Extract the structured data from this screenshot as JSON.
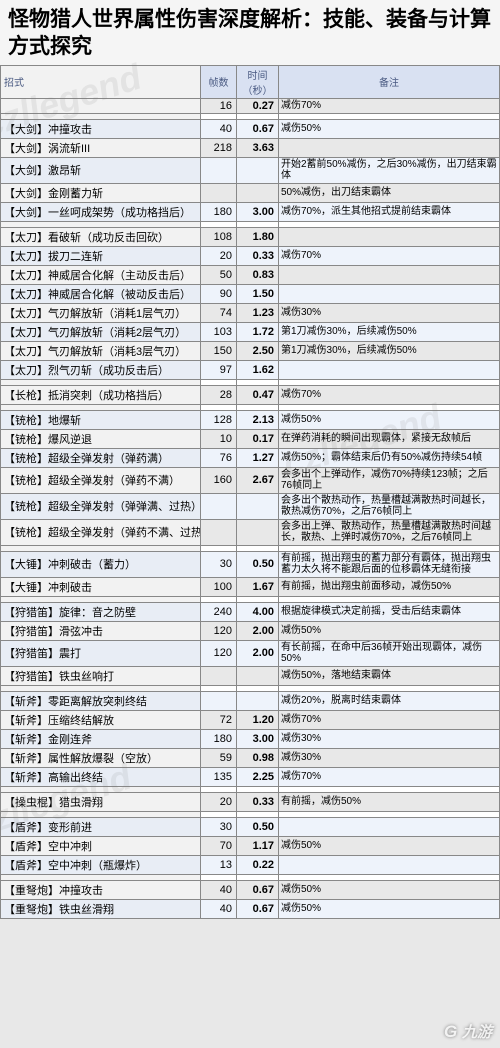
{
  "title": "怪物猎人世界属性伤害深度解析：技能、装备与计算方式探究",
  "watermark": "czllegend",
  "logo": "九游",
  "headers": {
    "name": "招式",
    "frames": "帧数",
    "seconds": "时间（秒）",
    "notes": "备注"
  },
  "groups": [
    {
      "rows": [
        {
          "n": "",
          "f": "16",
          "s": "0.27",
          "t": "减伤70%"
        }
      ]
    },
    {
      "rows": [
        {
          "n": "【大剑】冲撞攻击",
          "f": "40",
          "s": "0.67",
          "t": "减伤50%"
        },
        {
          "n": "【大剑】涡流斩III",
          "f": "218",
          "s": "3.63",
          "t": ""
        },
        {
          "n": "【大剑】激昂斩",
          "f": "",
          "s": "",
          "t": "开始2蓄前50%减伤，之后30%减伤，出刀结束霸体"
        },
        {
          "n": "【大剑】金刚蓄力斩",
          "f": "",
          "s": "",
          "t": "50%减伤，出刀结束霸体"
        },
        {
          "n": "【大剑】一丝呵成架势（成功格挡后）",
          "f": "180",
          "s": "3.00",
          "t": "减伤70%，派生其他招式提前结束霸体"
        }
      ]
    },
    {
      "rows": [
        {
          "n": "【太刀】看破斩（成功反击回砍）",
          "f": "108",
          "s": "1.80",
          "t": ""
        },
        {
          "n": "【太刀】拔刀二连斩",
          "f": "20",
          "s": "0.33",
          "t": "减伤70%"
        },
        {
          "n": "【太刀】神威居合化解（主动反击后）",
          "f": "50",
          "s": "0.83",
          "t": ""
        },
        {
          "n": "【太刀】神威居合化解（被动反击后）",
          "f": "90",
          "s": "1.50",
          "t": ""
        },
        {
          "n": "【太刀】气刃解放斩（消耗1层气刃）",
          "f": "74",
          "s": "1.23",
          "t": "减伤30%"
        },
        {
          "n": "【太刀】气刃解放斩（消耗2层气刃）",
          "f": "103",
          "s": "1.72",
          "t": "第1刀减伤30%，后续减伤50%"
        },
        {
          "n": "【太刀】气刃解放斩（消耗3层气刃）",
          "f": "150",
          "s": "2.50",
          "t": "第1刀减伤30%，后续减伤50%"
        },
        {
          "n": "【太刀】烈气刃斩（成功反击后）",
          "f": "97",
          "s": "1.62",
          "t": ""
        }
      ]
    },
    {
      "rows": [
        {
          "n": "【长枪】抵消突刺（成功格挡后）",
          "f": "28",
          "s": "0.47",
          "t": "减伤70%"
        }
      ]
    },
    {
      "rows": [
        {
          "n": "【铳枪】地爆斩",
          "f": "128",
          "s": "2.13",
          "t": "减伤50%"
        },
        {
          "n": "【铳枪】爆风逆退",
          "f": "10",
          "s": "0.17",
          "t": "在弹药消耗的瞬间出现霸体，紧接无敌帧后"
        },
        {
          "n": "【铳枪】超级全弹发射（弹药满）",
          "f": "76",
          "s": "1.27",
          "t": "减伤50%；霸体结束后仍有50%减伤持续54帧"
        },
        {
          "n": "【铳枪】超级全弹发射（弹药不满）",
          "f": "160",
          "s": "2.67",
          "t": "会多出个上弹动作，减伤70%持续123帧；之后76帧同上"
        },
        {
          "n": "【铳枪】超级全弹发射（弹弹满、过热）",
          "f": "",
          "s": "",
          "t": "会多出个散热动作，热量槽越满散热时间越长，散热减伤70%，之后76帧同上"
        },
        {
          "n": "【铳枪】超级全弹发射（弹药不满、过热）",
          "f": "",
          "s": "",
          "t": "会多出上弹、散热动作，热量槽越满散热时间越长，散热、上弹时减伤70%，之后76帧同上"
        }
      ]
    },
    {
      "rows": [
        {
          "n": "【大锤】冲刺破击（蓄力）",
          "f": "30",
          "s": "0.50",
          "t": "有前摇，抛出翔虫的蓄力部分有霸体，抛出翔虫蓄力太久将不能跟后面的位移霸体无缝衔接"
        },
        {
          "n": "【大锤】冲刺破击",
          "f": "100",
          "s": "1.67",
          "t": "有前摇，抛出翔虫前面移动，减伤50%"
        }
      ]
    },
    {
      "rows": [
        {
          "n": "【狩猎笛】旋律：音之防壁",
          "f": "240",
          "s": "4.00",
          "t": "根据旋律模式决定前摇，受击后结束霸体"
        },
        {
          "n": "【狩猎笛】滑弦冲击",
          "f": "120",
          "s": "2.00",
          "t": "减伤50%"
        },
        {
          "n": "【狩猎笛】震打",
          "f": "120",
          "s": "2.00",
          "t": "有长前摇，在命中后36帧开始出现霸体，减伤50%"
        },
        {
          "n": "【狩猎笛】铁虫丝响打",
          "f": "",
          "s": "",
          "t": "减伤50%，落地结束霸体"
        }
      ]
    },
    {
      "rows": [
        {
          "n": "【斩斧】零距离解放突刺终结",
          "f": "",
          "s": "",
          "t": "减伤20%，脱离时结束霸体"
        },
        {
          "n": "【斩斧】压缩终结解放",
          "f": "72",
          "s": "1.20",
          "t": "减伤70%"
        },
        {
          "n": "【斩斧】金刚连斧",
          "f": "180",
          "s": "3.00",
          "t": "减伤30%"
        },
        {
          "n": "【斩斧】属性解放爆裂（空放）",
          "f": "59",
          "s": "0.98",
          "t": "减伤30%"
        },
        {
          "n": "【斩斧】高输出终结",
          "f": "135",
          "s": "2.25",
          "t": "减伤70%"
        }
      ]
    },
    {
      "rows": [
        {
          "n": "【操虫棍】猎虫滑翔",
          "f": "20",
          "s": "0.33",
          "t": "有前摇，减伤50%"
        }
      ]
    },
    {
      "rows": [
        {
          "n": "【盾斧】变形前进",
          "f": "30",
          "s": "0.50",
          "t": ""
        },
        {
          "n": "【盾斧】空中冲刺",
          "f": "70",
          "s": "1.17",
          "t": "减伤50%"
        },
        {
          "n": "【盾斧】空中冲刺（瓶爆炸）",
          "f": "13",
          "s": "0.22",
          "t": ""
        }
      ]
    },
    {
      "rows": [
        {
          "n": "【重弩炮】冲撞攻击",
          "f": "40",
          "s": "0.67",
          "t": "减伤50%"
        },
        {
          "n": "【重弩炮】铁虫丝滑翔",
          "f": "40",
          "s": "0.67",
          "t": "减伤50%"
        }
      ]
    }
  ]
}
